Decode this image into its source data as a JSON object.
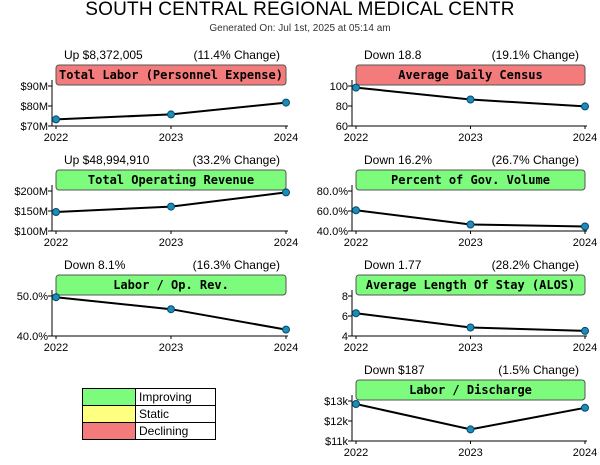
{
  "header": {
    "title": "SOUTH CENTRAL REGIONAL MEDICAL CENTR",
    "generated": "Generated On: Jul 1st, 2025 at 05:14 am"
  },
  "colors": {
    "improving": "#7dfb7d",
    "static": "#ffff80",
    "declining": "#f37b7b"
  },
  "legend": [
    {
      "label": "Improving",
      "status": "improving"
    },
    {
      "label": "Static",
      "status": "static"
    },
    {
      "label": "Declining",
      "status": "declining"
    }
  ],
  "chart_data": [
    {
      "type": "line",
      "title": "Total Labor (Personnel Expense)",
      "change_text": "Up $8,372,005",
      "pct_text": "(11.4% Change)",
      "status": "declining",
      "categories": [
        "2022",
        "2023",
        "2024"
      ],
      "values": [
        73.3,
        75.8,
        81.7
      ],
      "ylim": [
        70,
        90
      ],
      "yticks": [
        {
          "v": 70,
          "label": "$70M"
        },
        {
          "v": 80,
          "label": "$80M"
        },
        {
          "v": 90,
          "label": "$90M"
        }
      ]
    },
    {
      "type": "line",
      "title": "Average Daily Census",
      "change_text": "Down 18.8",
      "pct_text": "(19.1% Change)",
      "status": "declining",
      "categories": [
        "2022",
        "2023",
        "2024"
      ],
      "values": [
        98.4,
        86.5,
        79.6
      ],
      "ylim": [
        60,
        100
      ],
      "yticks": [
        {
          "v": 60,
          "label": "60"
        },
        {
          "v": 80,
          "label": "80"
        },
        {
          "v": 100,
          "label": "100"
        }
      ]
    },
    {
      "type": "line",
      "title": "Total Operating Revenue",
      "change_text": "Up $48,994,910",
      "pct_text": "(33.2% Change)",
      "status": "improving",
      "categories": [
        "2022",
        "2023",
        "2024"
      ],
      "values": [
        147.5,
        161,
        196.5
      ],
      "ylim": [
        100,
        200
      ],
      "yticks": [
        {
          "v": 100,
          "label": "$100M"
        },
        {
          "v": 150,
          "label": "$150M"
        },
        {
          "v": 200,
          "label": "$200M"
        }
      ]
    },
    {
      "type": "line",
      "title": "Percent of Gov. Volume",
      "change_text": "Down 16.2%",
      "pct_text": "(26.7% Change)",
      "status": "improving",
      "categories": [
        "2022",
        "2023",
        "2024"
      ],
      "values": [
        60.7,
        46.5,
        44.5
      ],
      "ylim": [
        40,
        80
      ],
      "yticks": [
        {
          "v": 40,
          "label": "40.0%"
        },
        {
          "v": 60,
          "label": "60.0%"
        },
        {
          "v": 80,
          "label": "80.0%"
        }
      ]
    },
    {
      "type": "line",
      "title": "Labor / Op. Rev.",
      "change_text": "Down 8.1%",
      "pct_text": "(16.3% Change)",
      "status": "improving",
      "categories": [
        "2022",
        "2023",
        "2024"
      ],
      "values": [
        49.7,
        46.7,
        41.6
      ],
      "ylim": [
        40,
        50
      ],
      "yticks": [
        {
          "v": 40,
          "label": "40.0%"
        },
        {
          "v": 50,
          "label": "50.0%"
        }
      ]
    },
    {
      "type": "line",
      "title": "Average Length Of Stay (ALOS)",
      "change_text": "Down 1.77",
      "pct_text": "(28.2% Change)",
      "status": "improving",
      "categories": [
        "2022",
        "2023",
        "2024"
      ],
      "values": [
        6.28,
        4.85,
        4.51
      ],
      "ylim": [
        4,
        8
      ],
      "yticks": [
        {
          "v": 4,
          "label": "4"
        },
        {
          "v": 6,
          "label": "6"
        },
        {
          "v": 8,
          "label": "8"
        }
      ]
    },
    {
      "type": "line",
      "title": "Labor / Discharge",
      "change_text": "Down $187",
      "pct_text": "(1.5% Change)",
      "status": "improving",
      "categories": [
        "2022",
        "2023",
        "2024"
      ],
      "values": [
        12850,
        11580,
        12660
      ],
      "ylim": [
        11000,
        13000
      ],
      "yticks": [
        {
          "v": 11000,
          "label": "$11k"
        },
        {
          "v": 12000,
          "label": "$12k"
        },
        {
          "v": 13000,
          "label": "$13k"
        }
      ]
    }
  ]
}
